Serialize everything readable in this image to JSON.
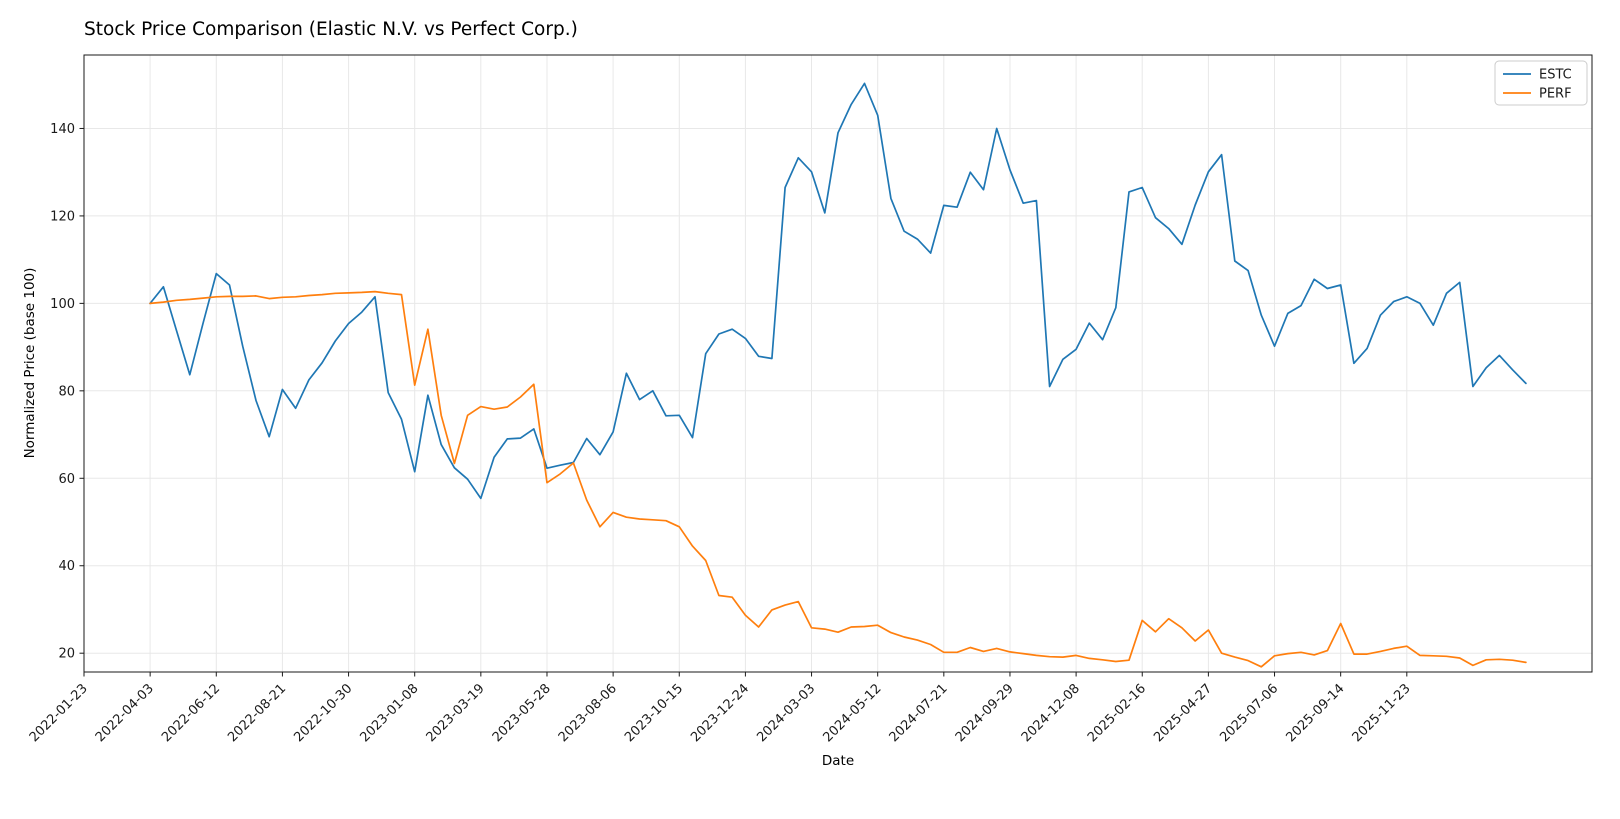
{
  "chart_data": {
    "type": "line",
    "title": "Stock Price Comparison (Elastic N.V. vs Perfect Corp.)",
    "xlabel": "Date",
    "ylabel": "Normalized Price (base 100)",
    "legend_position": "upper right",
    "grid": true,
    "background": "#ffffff",
    "grid_color": "#e8e8e8",
    "spine_color": "#1a1a1a",
    "tick_label_color": "#1a1a1a",
    "ylim": [
      15.7,
      156.8
    ],
    "xlim": [
      "2022-01-23",
      "2026-06-07"
    ],
    "y_ticks": [
      20,
      40,
      60,
      80,
      100,
      120,
      140
    ],
    "x_tick_labels": [
      "2022-01-23",
      "2022-04-03",
      "2022-06-12",
      "2022-08-21",
      "2022-10-30",
      "2023-01-08",
      "2023-03-19",
      "2023-05-28",
      "2023-08-06",
      "2023-10-15",
      "2023-12-24",
      "2024-03-03",
      "2024-05-12",
      "2024-07-21",
      "2024-09-29",
      "2024-12-08",
      "2025-02-16",
      "2025-04-27",
      "2025-07-06",
      "2025-09-14",
      "2025-11-23"
    ],
    "x": [
      "2022-04-03",
      "2022-04-17",
      "2022-05-01",
      "2022-05-15",
      "2022-05-29",
      "2022-06-12",
      "2022-06-26",
      "2022-07-10",
      "2022-07-24",
      "2022-08-07",
      "2022-08-21",
      "2022-09-04",
      "2022-09-18",
      "2022-10-02",
      "2022-10-16",
      "2022-10-30",
      "2022-11-13",
      "2022-11-27",
      "2022-12-11",
      "2022-12-25",
      "2023-01-08",
      "2023-01-22",
      "2023-02-05",
      "2023-02-19",
      "2023-03-05",
      "2023-03-19",
      "2023-04-02",
      "2023-04-16",
      "2023-04-30",
      "2023-05-14",
      "2023-05-28",
      "2023-06-11",
      "2023-06-25",
      "2023-07-09",
      "2023-07-23",
      "2023-08-06",
      "2023-08-20",
      "2023-09-03",
      "2023-09-17",
      "2023-10-01",
      "2023-10-15",
      "2023-10-29",
      "2023-11-12",
      "2023-11-26",
      "2023-12-10",
      "2023-12-24",
      "2024-01-07",
      "2024-01-21",
      "2024-02-04",
      "2024-02-18",
      "2024-03-03",
      "2024-03-17",
      "2024-03-31",
      "2024-04-14",
      "2024-04-28",
      "2024-05-12",
      "2024-05-26",
      "2024-06-09",
      "2024-06-23",
      "2024-07-07",
      "2024-07-21",
      "2024-08-04",
      "2024-08-18",
      "2024-09-01",
      "2024-09-15",
      "2024-09-29",
      "2024-10-13",
      "2024-10-27",
      "2024-11-10",
      "2024-11-24",
      "2024-12-08",
      "2024-12-22",
      "2025-01-05",
      "2025-01-19",
      "2025-02-02",
      "2025-02-16",
      "2025-03-02",
      "2025-03-16",
      "2025-03-30",
      "2025-04-13",
      "2025-04-27",
      "2025-05-11",
      "2025-05-25",
      "2025-06-08",
      "2025-06-22",
      "2025-07-06",
      "2025-07-20",
      "2025-08-03",
      "2025-08-17",
      "2025-08-31",
      "2025-09-14",
      "2025-09-28",
      "2025-10-12",
      "2025-10-26",
      "2025-11-09",
      "2025-11-23",
      "2025-12-07",
      "2025-12-21",
      "2026-01-04",
      "2026-01-18",
      "2026-02-01",
      "2026-02-15",
      "2026-03-01",
      "2026-03-15",
      "2026-03-29"
    ],
    "series": [
      {
        "name": "ESTC",
        "color": "#1f77b4",
        "values": [
          100,
          103.8,
          93.7,
          83.7,
          95.5,
          106.8,
          104.2,
          90.2,
          77.8,
          69.5,
          80.3,
          76,
          82.5,
          86.4,
          91.4,
          95.4,
          98,
          101.5,
          79.6,
          73.5,
          61.5,
          79,
          67.7,
          62.4,
          59.8,
          55.4,
          64.8,
          69,
          69.2,
          71.3,
          62.3,
          63,
          63.6,
          69.1,
          65.4,
          70.6,
          84,
          78,
          80,
          74.3,
          74.4,
          69.3,
          88.5,
          93,
          94.1,
          92,
          87.9,
          87.4,
          126.5,
          133.3,
          130.1,
          120.7,
          139,
          145.5,
          150.3,
          143,
          124,
          116.5,
          114.7,
          111.5,
          122.4,
          122,
          130,
          126,
          140,
          130.5,
          122.9,
          123.5,
          81,
          87.2,
          89.5,
          95.5,
          91.7,
          99,
          125.5,
          126.5,
          119.6,
          117.1,
          113.5,
          122.5,
          130.1,
          134,
          109.7,
          107.5,
          97.3,
          90.2,
          97.7,
          99.5,
          105.5,
          103.4,
          104.2,
          86.3,
          89.7,
          97.3,
          100.4,
          101.5,
          100,
          95,
          102.3,
          104.8,
          81,
          85.3,
          88.1,
          84.8,
          81.7
        ]
      },
      {
        "name": "PERF",
        "color": "#ff7f0e",
        "values": [
          100,
          100.3,
          100.7,
          100.9,
          101.2,
          101.5,
          101.6,
          101.6,
          101.7,
          101.1,
          101.4,
          101.5,
          101.8,
          102,
          102.3,
          102.4,
          102.5,
          102.7,
          102.3,
          102,
          81.3,
          94.1,
          74.4,
          63.4,
          74.4,
          76.4,
          75.8,
          76.3,
          78.6,
          81.5,
          59,
          61,
          63.5,
          55,
          48.9,
          52.2,
          51.1,
          50.7,
          50.5,
          50.3,
          48.9,
          44.5,
          41.2,
          33.2,
          32.8,
          28.7,
          26,
          29.9,
          31,
          31.8,
          25.8,
          25.5,
          24.8,
          26,
          26.1,
          26.4,
          24.7,
          23.7,
          23,
          22,
          20.2,
          20.2,
          21.3,
          20.4,
          21.1,
          20.3,
          19.9,
          19.5,
          19.2,
          19.1,
          19.5,
          18.8,
          18.5,
          18.1,
          18.4,
          27.5,
          24.9,
          27.9,
          25.8,
          22.8,
          25.3,
          20,
          19.1,
          18.3,
          16.9,
          19.4,
          19.9,
          20.2,
          19.6,
          20.6,
          26.8,
          19.8,
          19.8,
          20.4,
          21.1,
          21.6,
          19.5,
          19.4,
          19.3,
          18.9,
          17.2,
          18.5,
          18.6,
          18.4,
          17.9
        ]
      }
    ]
  }
}
